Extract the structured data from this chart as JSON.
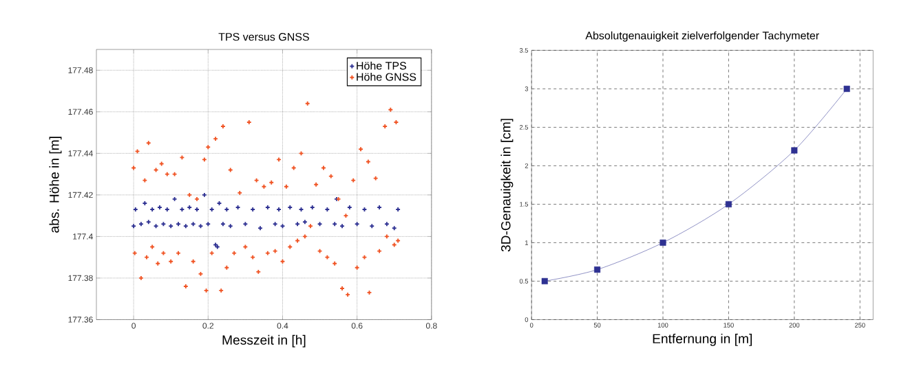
{
  "chart_data": [
    {
      "type": "scatter",
      "title": "TPS versus GNSS",
      "xlabel": "Messzeit in [h]",
      "ylabel": "abs. Höhe in [m]",
      "xlim": [
        -0.1,
        0.8
      ],
      "ylim": [
        177.36,
        177.49
      ],
      "xticks": [
        0,
        0.2,
        0.4,
        0.6,
        0.8
      ],
      "yticks": [
        177.36,
        177.38,
        177.4,
        177.42,
        177.44,
        177.46,
        177.48
      ],
      "grid": true,
      "legend": "top right",
      "marker": "cross",
      "series": [
        {
          "name": "Höhe TPS",
          "color": "#2e3192",
          "x": [
            0.0,
            0.005,
            0.02,
            0.03,
            0.04,
            0.05,
            0.06,
            0.07,
            0.08,
            0.09,
            0.1,
            0.11,
            0.12,
            0.13,
            0.14,
            0.15,
            0.16,
            0.17,
            0.18,
            0.19,
            0.2,
            0.21,
            0.22,
            0.225,
            0.23,
            0.24,
            0.25,
            0.26,
            0.28,
            0.3,
            0.32,
            0.34,
            0.36,
            0.38,
            0.39,
            0.4,
            0.42,
            0.44,
            0.45,
            0.46,
            0.48,
            0.5,
            0.52,
            0.54,
            0.545,
            0.56,
            0.58,
            0.6,
            0.62,
            0.64,
            0.66,
            0.68,
            0.7,
            0.71
          ],
          "values": [
            177.405,
            177.413,
            177.406,
            177.416,
            177.407,
            177.413,
            177.405,
            177.414,
            177.406,
            177.413,
            177.405,
            177.418,
            177.406,
            177.413,
            177.405,
            177.414,
            177.406,
            177.413,
            177.405,
            177.42,
            177.406,
            177.413,
            177.396,
            177.395,
            177.416,
            177.406,
            177.413,
            177.405,
            177.414,
            177.406,
            177.413,
            177.404,
            177.414,
            177.406,
            177.413,
            177.405,
            177.414,
            177.406,
            177.413,
            177.407,
            177.414,
            177.406,
            177.413,
            177.406,
            177.418,
            177.405,
            177.414,
            177.406,
            177.413,
            177.405,
            177.414,
            177.406,
            177.404,
            177.413
          ]
        },
        {
          "name": "Höhe GNSS",
          "color": "#f05323",
          "x": [
            0.0,
            0.003,
            0.01,
            0.02,
            0.03,
            0.035,
            0.04,
            0.05,
            0.06,
            0.065,
            0.075,
            0.08,
            0.09,
            0.1,
            0.11,
            0.12,
            0.13,
            0.14,
            0.15,
            0.16,
            0.17,
            0.18,
            0.19,
            0.195,
            0.2,
            0.21,
            0.22,
            0.235,
            0.24,
            0.25,
            0.26,
            0.27,
            0.285,
            0.3,
            0.31,
            0.32,
            0.33,
            0.335,
            0.35,
            0.36,
            0.37,
            0.38,
            0.39,
            0.4,
            0.41,
            0.42,
            0.43,
            0.44,
            0.45,
            0.46,
            0.467,
            0.475,
            0.49,
            0.5,
            0.51,
            0.52,
            0.53,
            0.54,
            0.55,
            0.56,
            0.57,
            0.575,
            0.59,
            0.6,
            0.61,
            0.62,
            0.63,
            0.633,
            0.65,
            0.66,
            0.675,
            0.68,
            0.69,
            0.7,
            0.705,
            0.71
          ],
          "values": [
            177.433,
            177.392,
            177.441,
            177.38,
            177.427,
            177.39,
            177.445,
            177.395,
            177.432,
            177.387,
            177.435,
            177.392,
            177.43,
            177.388,
            177.43,
            177.392,
            177.438,
            177.376,
            177.42,
            177.388,
            177.418,
            177.382,
            177.437,
            177.374,
            177.443,
            177.392,
            177.447,
            177.374,
            177.453,
            177.385,
            177.432,
            177.392,
            177.421,
            177.395,
            177.455,
            177.39,
            177.427,
            177.383,
            177.424,
            177.392,
            177.426,
            177.393,
            177.437,
            177.388,
            177.424,
            177.395,
            177.433,
            177.398,
            177.44,
            177.4,
            177.464,
            177.405,
            177.425,
            177.393,
            177.433,
            177.39,
            177.429,
            177.387,
            177.418,
            177.375,
            177.41,
            177.372,
            177.427,
            177.385,
            177.442,
            177.39,
            177.436,
            177.373,
            177.428,
            177.393,
            177.453,
            177.4,
            177.461,
            177.396,
            177.455,
            177.398
          ]
        }
      ]
    },
    {
      "type": "line",
      "title": "Absolutgenauigkeit zielverfolgender Tachymeter",
      "xlabel": "Entfernung in [m]",
      "ylabel": "3D-Genauigkeit in [cm]",
      "xlim": [
        0,
        260
      ],
      "ylim": [
        0,
        3.5
      ],
      "xticks": [
        0,
        50,
        100,
        150,
        200,
        250
      ],
      "yticks": [
        0,
        0.5,
        1,
        1.5,
        2,
        2.5,
        3,
        3.5
      ],
      "grid": true,
      "marker": "square",
      "line_style": "solid",
      "x": [
        10,
        50,
        100,
        150,
        200,
        240
      ],
      "values": [
        0.5,
        0.65,
        1,
        1.5,
        2.2,
        3
      ],
      "color": "#2e3192"
    }
  ]
}
